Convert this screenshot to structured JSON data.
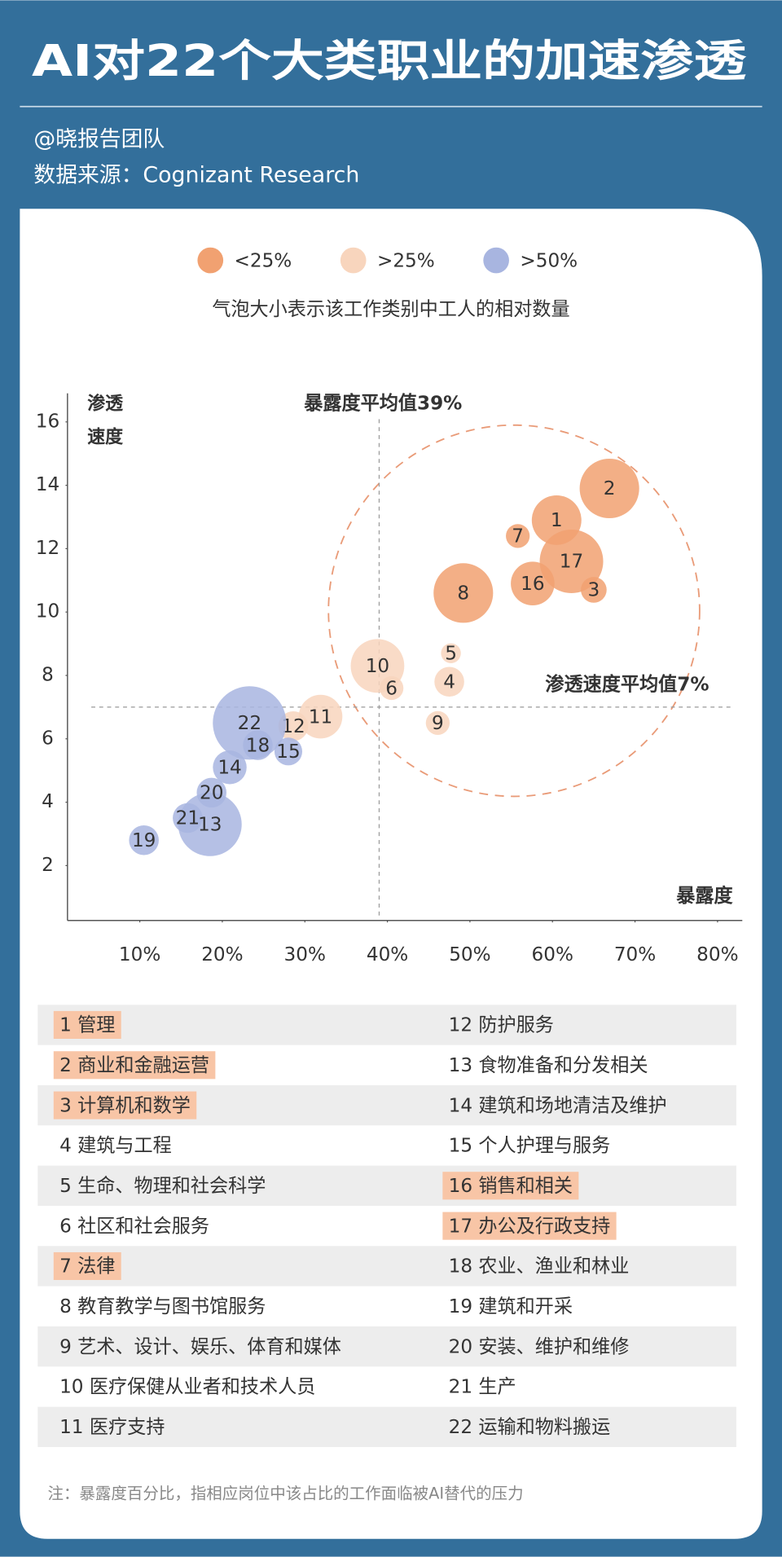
{
  "header": {
    "title": "AI对22个大类职业的加速渗透",
    "author": "@晓报告团队",
    "source": "数据来源：Cognizant Research"
  },
  "chart_data": {
    "type": "bubble",
    "subtitle": "气泡大小表示该工作类别中工人的相对数量",
    "y_label": "渗透速度",
    "x_label": "暴露度",
    "x_mean": 39,
    "x_mean_label": "暴露度平均值39%",
    "y_mean": 7,
    "y_mean_label": "渗透速度平均值7%",
    "xlim": [
      1,
      83
    ],
    "ylim": [
      0.3,
      16.9
    ],
    "xticks": [
      {
        "value": 10,
        "label": "10%"
      },
      {
        "value": 20,
        "label": "20%"
      },
      {
        "value": 30,
        "label": "30%"
      },
      {
        "value": 40,
        "label": "40%"
      },
      {
        "value": 50,
        "label": "50%"
      },
      {
        "value": 60,
        "label": "60%"
      },
      {
        "value": 70,
        "label": "70%"
      },
      {
        "value": 80,
        "label": "80%"
      }
    ],
    "yticks": [
      2,
      4,
      6,
      8,
      10,
      12,
      14,
      16
    ],
    "series": [
      {
        "name": "<25%",
        "color": "#f1a171",
        "labels": [
          "1",
          "2",
          "3",
          "7",
          "8",
          "16",
          "17"
        ],
        "x": [
          60.5,
          66.9,
          65.0,
          55.8,
          49.2,
          57.6,
          62.3
        ],
        "values": [
          12.9,
          13.9,
          10.7,
          12.4,
          10.6,
          10.9,
          11.6
        ],
        "sizes": [
          25,
          30,
          13,
          12,
          30,
          22,
          32
        ]
      },
      {
        "name": ">25%",
        "color": "#f8d5bd",
        "labels": [
          "4",
          "5",
          "6",
          "9",
          "10",
          "11",
          "12"
        ],
        "x": [
          47.5,
          47.7,
          40.5,
          46.1,
          38.8,
          31.9,
          28.6
        ],
        "values": [
          7.8,
          8.7,
          7.6,
          6.5,
          8.3,
          6.7,
          6.4
        ],
        "sizes": [
          15,
          10,
          12,
          12,
          27,
          22,
          15
        ]
      },
      {
        "name": ">50%",
        "color": "#a8b5e0",
        "labels": [
          "13",
          "14",
          "15",
          "18",
          "19",
          "20",
          "21",
          "22"
        ],
        "x": [
          18.5,
          20.9,
          28.0,
          24.3,
          10.5,
          18.7,
          15.8,
          23.3
        ],
        "values": [
          3.3,
          5.1,
          5.6,
          5.8,
          2.8,
          4.3,
          3.5,
          6.5
        ],
        "sizes": [
          32,
          17,
          14,
          15,
          15,
          15,
          15,
          37
        ]
      }
    ]
  },
  "table": {
    "columns": [
      [
        {
          "text": "1 管理",
          "highlight": true
        },
        {
          "text": "2 商业和金融运营",
          "highlight": true
        },
        {
          "text": "3 计算机和数学",
          "highlight": true
        },
        {
          "text": "4 建筑与工程",
          "highlight": false
        },
        {
          "text": "5 生命、物理和社会科学",
          "highlight": false
        },
        {
          "text": "6 社区和社会服务",
          "highlight": false
        },
        {
          "text": "7 法律",
          "highlight": true
        },
        {
          "text": "8 教育教学与图书馆服务",
          "highlight": false
        },
        {
          "text": "9 艺术、设计、娱乐、体育和媒体",
          "highlight": false
        },
        {
          "text": "10 医疗保健从业者和技术人员",
          "highlight": false
        },
        {
          "text": "11 医疗支持",
          "highlight": false
        }
      ],
      [
        {
          "text": "12 防护服务",
          "highlight": false
        },
        {
          "text": "13 食物准备和分发相关",
          "highlight": false
        },
        {
          "text": "14 建筑和场地清洁及维护",
          "highlight": false
        },
        {
          "text": "15 个人护理与服务",
          "highlight": false
        },
        {
          "text": "16 销售和相关",
          "highlight": true
        },
        {
          "text": "17 办公及行政支持",
          "highlight": true
        },
        {
          "text": "18 农业、渔业和林业",
          "highlight": false
        },
        {
          "text": "19 建筑和开采",
          "highlight": false
        },
        {
          "text": "20 安装、维护和维修",
          "highlight": false
        },
        {
          "text": "21 生产",
          "highlight": false
        },
        {
          "text": "22 运输和物料搬运",
          "highlight": false
        }
      ]
    ]
  },
  "footnote": "注：暴露度百分比，指相应岗位中该占比的工作面临被AI替代的压力"
}
